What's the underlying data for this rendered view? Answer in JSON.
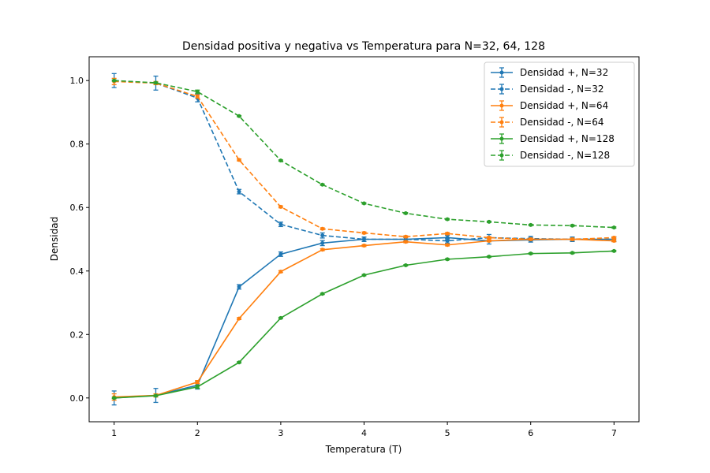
{
  "chart_data": {
    "type": "line",
    "title": "Densidad positiva y negativa vs Temperatura para N=32, 64, 128",
    "xlabel": "Temperatura (T)",
    "ylabel": "Densidad",
    "xlim": [
      0.7,
      7.3
    ],
    "ylim": [
      -0.075,
      1.075
    ],
    "xticks": [
      1,
      2,
      3,
      4,
      5,
      6,
      7
    ],
    "yticks": [
      0.0,
      0.2,
      0.4,
      0.6,
      0.8,
      1.0
    ],
    "x": [
      1.0,
      1.5,
      2.0,
      2.5,
      3.0,
      3.5,
      4.0,
      4.5,
      5.0,
      5.5,
      6.0,
      6.5,
      7.0
    ],
    "grid": false,
    "legend_position": "top-right",
    "series": [
      {
        "name": "Densidad +, N=32",
        "color": "#1f77b4",
        "dash": "solid",
        "values": [
          0.0,
          0.008,
          0.04,
          0.35,
          0.453,
          0.488,
          0.5,
          0.5,
          0.505,
          0.495,
          0.498,
          0.5,
          0.5
        ],
        "errors": [
          0.022,
          0.022,
          0.012,
          0.007,
          0.007,
          0.008,
          0.007,
          0.007,
          0.007,
          0.01,
          0.007,
          0.007,
          0.007
        ]
      },
      {
        "name": "Densidad -, N=32",
        "color": "#1f77b4",
        "dash": "dashed",
        "values": [
          1.0,
          0.992,
          0.945,
          0.65,
          0.547,
          0.512,
          0.5,
          0.5,
          0.495,
          0.505,
          0.502,
          0.5,
          0.5
        ],
        "errors": [
          0.022,
          0.022,
          0.012,
          0.007,
          0.007,
          0.008,
          0.007,
          0.007,
          0.007,
          0.01,
          0.007,
          0.007,
          0.007
        ]
      },
      {
        "name": "Densidad +, N=64",
        "color": "#ff7f0e",
        "dash": "solid",
        "values": [
          0.003,
          0.008,
          0.05,
          0.25,
          0.398,
          0.467,
          0.48,
          0.492,
          0.482,
          0.495,
          0.5,
          0.5,
          0.495
        ],
        "errors": [
          0.01,
          0.005,
          0.005,
          0.003,
          0.003,
          0.003,
          0.003,
          0.003,
          0.003,
          0.003,
          0.003,
          0.003,
          0.003
        ]
      },
      {
        "name": "Densidad -, N=64",
        "color": "#ff7f0e",
        "dash": "dashed",
        "values": [
          0.997,
          0.992,
          0.95,
          0.75,
          0.602,
          0.533,
          0.52,
          0.508,
          0.518,
          0.505,
          0.5,
          0.5,
          0.505
        ],
        "errors": [
          0.01,
          0.005,
          0.005,
          0.003,
          0.003,
          0.003,
          0.003,
          0.003,
          0.003,
          0.003,
          0.003,
          0.003,
          0.003
        ]
      },
      {
        "name": "Densidad +, N=128",
        "color": "#2ca02c",
        "dash": "solid",
        "values": [
          0.0,
          0.007,
          0.035,
          0.112,
          0.252,
          0.328,
          0.387,
          0.418,
          0.437,
          0.445,
          0.455,
          0.457,
          0.463
        ],
        "errors": [
          0.002,
          0.002,
          0.005,
          0.002,
          0.002,
          0.002,
          0.002,
          0.002,
          0.002,
          0.002,
          0.002,
          0.002,
          0.002
        ]
      },
      {
        "name": "Densidad -, N=128",
        "color": "#2ca02c",
        "dash": "dashed",
        "values": [
          1.0,
          0.993,
          0.965,
          0.888,
          0.748,
          0.672,
          0.613,
          0.582,
          0.563,
          0.555,
          0.545,
          0.543,
          0.537
        ],
        "errors": [
          0.002,
          0.002,
          0.005,
          0.002,
          0.002,
          0.002,
          0.002,
          0.002,
          0.002,
          0.002,
          0.002,
          0.002,
          0.002
        ]
      }
    ]
  }
}
